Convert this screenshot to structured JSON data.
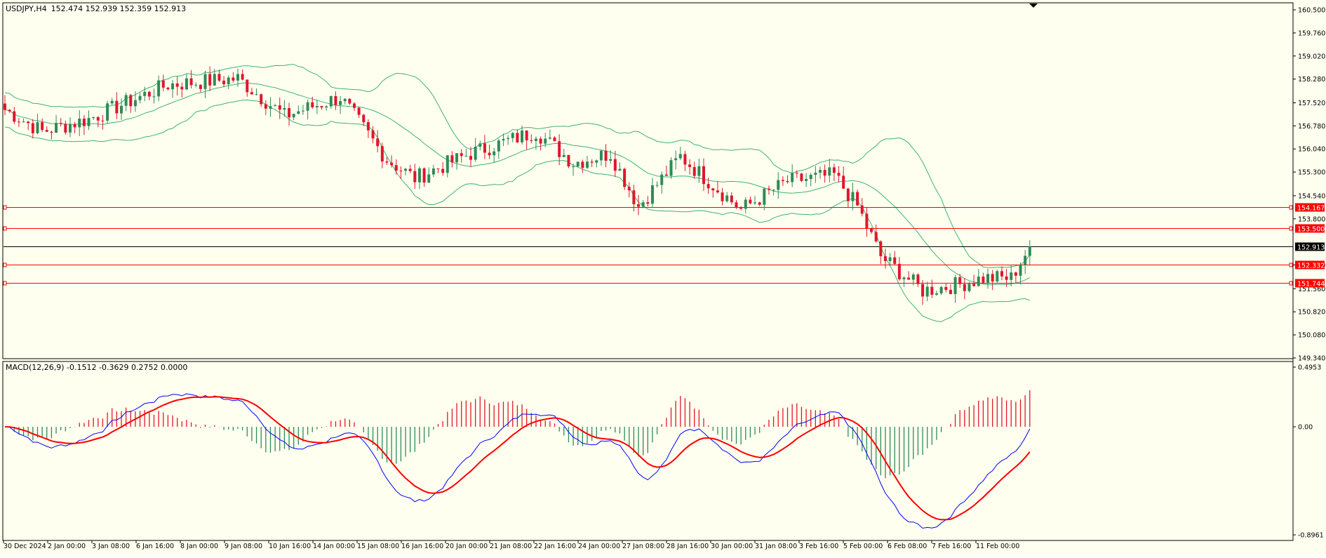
{
  "header": {
    "symbol": "USDJPY,H4",
    "ohlc": "152.474 152.939 152.359 152.913"
  },
  "macd_header": {
    "label": "MACD(12,26,9) -0.1512 -0.3629 0.2752 0.0000"
  },
  "colors": {
    "background": "#fffff0",
    "bull": "#2e8b57",
    "bear": "#e0162b",
    "band": "#3cb371",
    "level": "#ff0000",
    "macd_line": "#0000ff",
    "signal_line": "#ff0000",
    "current_label_bg": "#000000"
  },
  "price_axis": {
    "ticks": [
      "160.500",
      "159.760",
      "159.020",
      "158.280",
      "157.520",
      "156.780",
      "156.040",
      "155.300",
      "154.540",
      "153.800",
      "152.320",
      "151.560",
      "150.820",
      "150.080",
      "149.340"
    ]
  },
  "levels": [
    {
      "value": 154.167,
      "label": "154.167"
    },
    {
      "value": 153.5,
      "label": "153.500"
    },
    {
      "value": 152.332,
      "label": "152.332"
    },
    {
      "value": 151.744,
      "label": "151.744"
    }
  ],
  "current_price": {
    "value": 152.913,
    "label": "152.913"
  },
  "macd_axis": {
    "top": "0.4953",
    "zero": "0.00",
    "bottom": "-0.8961"
  },
  "time_axis": {
    "labels": [
      "30 Dec 2024",
      "2 Jan 00:00",
      "3 Jan 08:00",
      "6 Jan 16:00",
      "8 Jan 00:00",
      "9 Jan 08:00",
      "10 Jan 16:00",
      "14 Jan 00:00",
      "15 Jan 08:00",
      "16 Jan 16:00",
      "20 Jan 00:00",
      "21 Jan 08:00",
      "22 Jan 16:00",
      "24 Jan 00:00",
      "27 Jan 08:00",
      "28 Jan 16:00",
      "30 Jan 00:00",
      "31 Jan 08:00",
      "3 Feb 16:00",
      "5 Feb 00:00",
      "6 Feb 08:00",
      "7 Feb 16:00",
      "11 Feb 00:00"
    ]
  },
  "chart_data": {
    "type": "candlestick",
    "symbol": "USDJPY",
    "timeframe": "H4",
    "ylim": [
      149.34,
      160.5
    ],
    "closes_key_points": [
      {
        "bar": 0,
        "price": 157.3
      },
      {
        "bar": 8,
        "price": 156.6
      },
      {
        "bar": 18,
        "price": 157.0
      },
      {
        "bar": 35,
        "price": 158.1
      },
      {
        "bar": 50,
        "price": 158.3
      },
      {
        "bar": 60,
        "price": 157.1
      },
      {
        "bar": 72,
        "price": 157.7
      },
      {
        "bar": 82,
        "price": 155.7
      },
      {
        "bar": 88,
        "price": 155.1
      },
      {
        "bar": 100,
        "price": 155.9
      },
      {
        "bar": 114,
        "price": 156.6
      },
      {
        "bar": 122,
        "price": 155.6
      },
      {
        "bar": 130,
        "price": 155.9
      },
      {
        "bar": 136,
        "price": 154.2
      },
      {
        "bar": 145,
        "price": 155.8
      },
      {
        "bar": 158,
        "price": 154.1
      },
      {
        "bar": 168,
        "price": 155.0
      },
      {
        "bar": 178,
        "price": 155.2
      },
      {
        "bar": 183,
        "price": 154.2
      },
      {
        "bar": 188,
        "price": 152.6
      },
      {
        "bar": 197,
        "price": 151.5
      },
      {
        "bar": 205,
        "price": 151.7
      },
      {
        "bar": 210,
        "price": 151.9
      },
      {
        "bar": 216,
        "price": 151.9
      },
      {
        "bar": 220,
        "price": 152.913
      }
    ],
    "indicators": [
      "Bollinger Bands",
      "MACD(12,26,9)"
    ],
    "macd_range": [
      -0.8961,
      0.4953
    ]
  }
}
